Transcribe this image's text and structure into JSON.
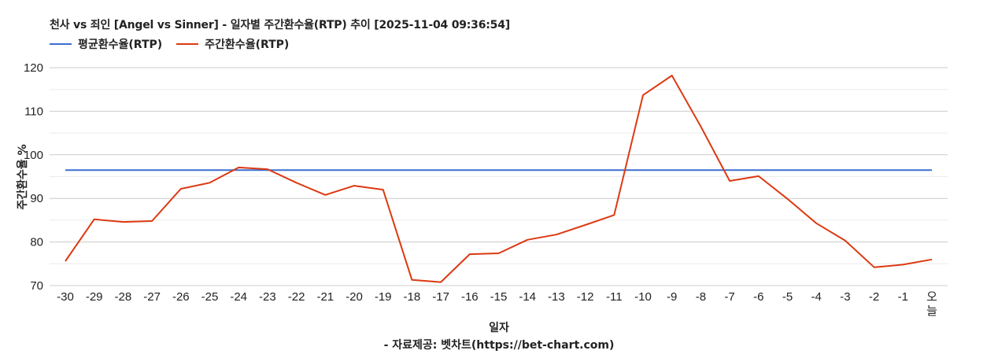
{
  "header": {
    "title": "천사 vs 죄인 [Angel vs Sinner] - 일자별 주간환수율(RTP) 추이 [2025-11-04 09:36:54]"
  },
  "legend": [
    {
      "label": "평균환수율(RTP)",
      "color": "#3c6fd0"
    },
    {
      "label": "주간환수율(RTP)",
      "color": "#dc3912"
    }
  ],
  "axes": {
    "ylabel": "주간환수율 %",
    "xlabel": "일자"
  },
  "footer": {
    "credit": "- 자료제공: 벳차트(https://bet-chart.com)"
  },
  "chart_data": {
    "type": "line",
    "title": "천사 vs 죄인 [Angel vs Sinner] - 일자별 주간환수율(RTP) 추이 [2025-11-04 09:36:54]",
    "xlabel": "일자",
    "ylabel": "주간환수율 %",
    "ylim": [
      70,
      120
    ],
    "yticks": [
      70,
      80,
      90,
      100,
      110,
      120
    ],
    "grid": true,
    "legend_position": "top-left",
    "categories": [
      "-30",
      "-29",
      "-28",
      "-27",
      "-26",
      "-25",
      "-24",
      "-23",
      "-22",
      "-21",
      "-20",
      "-19",
      "-18",
      "-17",
      "-16",
      "-15",
      "-14",
      "-13",
      "-12",
      "-11",
      "-10",
      "-9",
      "-8",
      "-7",
      "-6",
      "-5",
      "-4",
      "-3",
      "-2",
      "-1",
      "오늘"
    ],
    "series": [
      {
        "name": "평균환수율(RTP)",
        "color": "#3c6fd0",
        "values": [
          96.5,
          96.5,
          96.5,
          96.5,
          96.5,
          96.5,
          96.5,
          96.5,
          96.5,
          96.5,
          96.5,
          96.5,
          96.5,
          96.5,
          96.5,
          96.5,
          96.5,
          96.5,
          96.5,
          96.5,
          96.5,
          96.5,
          96.5,
          96.5,
          96.5,
          96.5,
          96.5,
          96.5,
          96.5,
          96.5,
          96.5
        ]
      },
      {
        "name": "주간환수율(RTP)",
        "color": "#dc3912",
        "values": [
          75.6,
          85.2,
          84.6,
          84.8,
          92.2,
          93.6,
          97.1,
          96.7,
          93.6,
          90.8,
          92.9,
          92.0,
          71.3,
          70.8,
          77.2,
          77.4,
          80.5,
          81.7,
          83.9,
          86.2,
          113.7,
          118.2,
          106.5,
          94.0,
          95.1,
          89.9,
          84.3,
          80.3,
          74.2,
          74.8,
          76.0
        ]
      }
    ]
  }
}
